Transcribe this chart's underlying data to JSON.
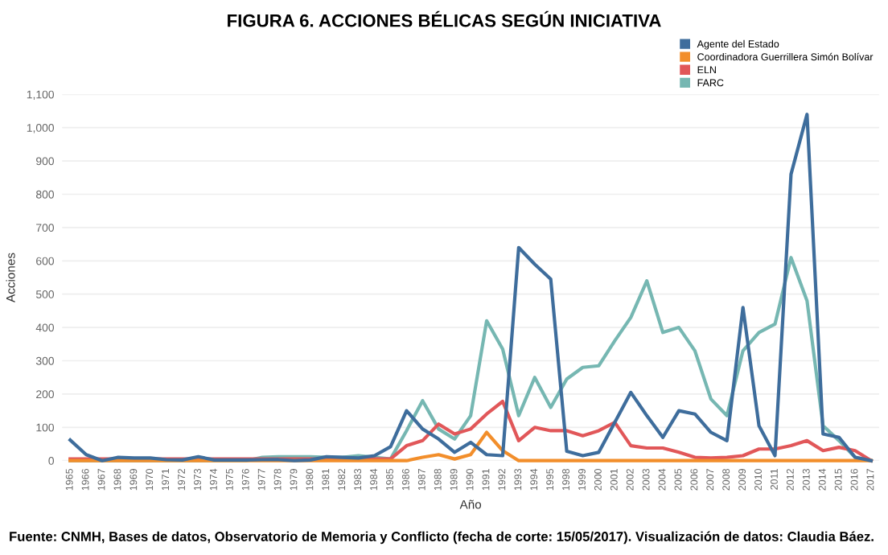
{
  "chart_data": {
    "type": "line",
    "title": "FIGURA 6. ACCIONES BÉLICAS SEGÚN INICIATIVA",
    "xlabel": "Año",
    "ylabel": "Acciones",
    "categories": [
      "1965",
      "1966",
      "1967",
      "1968",
      "1969",
      "1970",
      "1971",
      "1972",
      "1973",
      "1974",
      "1975",
      "1976",
      "1977",
      "1978",
      "1979",
      "1980",
      "1981",
      "1982",
      "1983",
      "1984",
      "1985",
      "1986",
      "1987",
      "1988",
      "1989",
      "1990",
      "1991",
      "1992",
      "1993",
      "1994",
      "1995",
      "1998",
      "1999",
      "2000",
      "2001",
      "2002",
      "2003",
      "2004",
      "2005",
      "2006",
      "2007",
      "2008",
      "2009",
      "2010",
      "2011",
      "2012",
      "2013",
      "2014",
      "2015",
      "2016",
      "2017"
    ],
    "series": [
      {
        "name": "Agente del Estado",
        "color": "#3e6d9c",
        "values": [
          62,
          18,
          0,
          10,
          8,
          8,
          3,
          2,
          12,
          2,
          2,
          2,
          3,
          3,
          0,
          2,
          12,
          10,
          8,
          15,
          42,
          150,
          95,
          65,
          25,
          55,
          18,
          15,
          640,
          590,
          545,
          28,
          15,
          25,
          115,
          205,
          135,
          70,
          150,
          140,
          85,
          60,
          460,
          105,
          15,
          860,
          1040,
          80,
          70,
          10,
          0
        ]
      },
      {
        "name": "Coordinadora Guerrillera Simón Bolívar",
        "color": "#f28e2b",
        "values": [
          0,
          0,
          0,
          0,
          0,
          0,
          0,
          0,
          0,
          0,
          0,
          0,
          0,
          0,
          0,
          0,
          0,
          0,
          0,
          0,
          0,
          0,
          10,
          18,
          5,
          18,
          85,
          30,
          0,
          0,
          0,
          0,
          0,
          0,
          0,
          0,
          0,
          0,
          0,
          0,
          0,
          0,
          0,
          0,
          0,
          0,
          0,
          0,
          0,
          0,
          0
        ]
      },
      {
        "name": "ELN",
        "color": "#e15759",
        "values": [
          5,
          5,
          5,
          5,
          5,
          5,
          5,
          5,
          5,
          5,
          5,
          5,
          5,
          5,
          5,
          5,
          5,
          5,
          5,
          5,
          5,
          45,
          60,
          110,
          80,
          95,
          140,
          178,
          60,
          100,
          90,
          90,
          75,
          90,
          115,
          45,
          38,
          38,
          25,
          10,
          8,
          10,
          15,
          35,
          35,
          45,
          60,
          30,
          40,
          30,
          0
        ]
      },
      {
        "name": "FARC",
        "color": "#76b7b2",
        "values": [
          0,
          0,
          0,
          0,
          0,
          0,
          0,
          0,
          0,
          0,
          0,
          0,
          10,
          12,
          12,
          12,
          10,
          10,
          15,
          10,
          5,
          90,
          180,
          95,
          65,
          135,
          420,
          335,
          135,
          250,
          160,
          245,
          280,
          285,
          360,
          430,
          540,
          385,
          400,
          330,
          185,
          135,
          330,
          385,
          410,
          610,
          480,
          105,
          60,
          10,
          0
        ]
      }
    ],
    "ylim": [
      0,
      1100
    ],
    "yticks": [
      {
        "value": 0,
        "label": "0"
      },
      {
        "value": 100,
        "label": "100"
      },
      {
        "value": 200,
        "label": "200"
      },
      {
        "value": 300,
        "label": "300"
      },
      {
        "value": 400,
        "label": "400"
      },
      {
        "value": 500,
        "label": "500"
      },
      {
        "value": 600,
        "label": "600"
      },
      {
        "value": 700,
        "label": "700"
      },
      {
        "value": 800,
        "label": "800"
      },
      {
        "value": 900,
        "label": "900"
      },
      {
        "value": 1000,
        "label": "1,000"
      },
      {
        "value": 1100,
        "label": "1,100"
      }
    ],
    "grid": "y",
    "legend": "top right",
    "marker": "none",
    "line_style": "solid",
    "annotations": [
      "Fuente: CNMH, Bases de datos, Observatorio de Memoria y Conflicto (fecha de corte: 15/05/2017). Visualización de datos: Claudia Báez."
    ]
  }
}
